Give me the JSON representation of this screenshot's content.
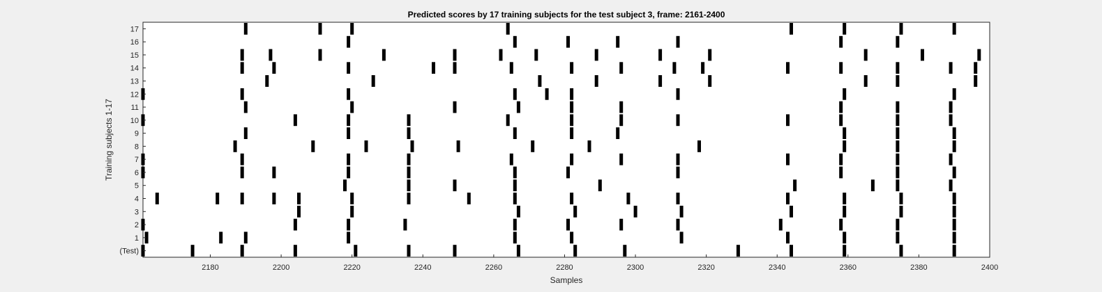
{
  "chart_data": {
    "type": "raster",
    "title": "Predicted scores by 17 training subjects for the test subject 3, frame: 2161-2400",
    "xlabel": "Samples",
    "ylabel": "Training subjects 1-17",
    "xlim": [
      2161,
      2400
    ],
    "xticks": [
      2180,
      2200,
      2220,
      2240,
      2260,
      2280,
      2300,
      2320,
      2340,
      2360,
      2380,
      2400
    ],
    "yticklabels": [
      "(Test)",
      "1",
      "2",
      "3",
      "4",
      "5",
      "6",
      "7",
      "8",
      "9",
      "10",
      "11",
      "12",
      "13",
      "14",
      "15",
      "16",
      "17"
    ],
    "grid": false,
    "bar_color": "#000000",
    "rows": [
      {
        "label": "(Test)",
        "events": [
          2161,
          2175,
          2189,
          2204,
          2221,
          2236,
          2249,
          2267,
          2283,
          2297,
          2329,
          2344,
          2359,
          2375,
          2390
        ]
      },
      {
        "label": "1",
        "events": [
          2162,
          2183,
          2190,
          2219,
          2266,
          2282,
          2313,
          2343,
          2359,
          2374,
          2390
        ]
      },
      {
        "label": "2",
        "events": [
          2161,
          2204,
          2219,
          2235,
          2266,
          2281,
          2296,
          2312,
          2341,
          2358,
          2374,
          2390
        ]
      },
      {
        "label": "3",
        "events": [
          2205,
          2220,
          2267,
          2283,
          2300,
          2313,
          2344,
          2359,
          2375,
          2390
        ]
      },
      {
        "label": "4",
        "events": [
          2165,
          2182,
          2189,
          2198,
          2205,
          2220,
          2236,
          2253,
          2266,
          2282,
          2298,
          2312,
          2343,
          2359,
          2375,
          2390
        ]
      },
      {
        "label": "5",
        "events": [
          2218,
          2236,
          2249,
          2266,
          2290,
          2345,
          2367,
          2374,
          2389
        ]
      },
      {
        "label": "6",
        "events": [
          2161,
          2189,
          2198,
          2219,
          2236,
          2266,
          2281,
          2312,
          2358,
          2374,
          2390
        ]
      },
      {
        "label": "7",
        "events": [
          2161,
          2189,
          2219,
          2236,
          2265,
          2282,
          2296,
          2312,
          2343,
          2358,
          2374,
          2389
        ]
      },
      {
        "label": "8",
        "events": [
          2187,
          2209,
          2224,
          2237,
          2250,
          2271,
          2287,
          2318,
          2359,
          2374,
          2390
        ]
      },
      {
        "label": "9",
        "events": [
          2190,
          2219,
          2236,
          2266,
          2282,
          2295,
          2359,
          2374,
          2390
        ]
      },
      {
        "label": "10",
        "events": [
          2161,
          2204,
          2219,
          2236,
          2264,
          2282,
          2296,
          2312,
          2343,
          2358,
          2374,
          2389
        ]
      },
      {
        "label": "11",
        "events": [
          2190,
          2220,
          2249,
          2267,
          2282,
          2296,
          2358,
          2374,
          2389
        ]
      },
      {
        "label": "12",
        "events": [
          2161,
          2189,
          2219,
          2266,
          2275,
          2282,
          2312,
          2359,
          2390
        ]
      },
      {
        "label": "13",
        "events": [
          2196,
          2226,
          2273,
          2289,
          2307,
          2321,
          2365,
          2374,
          2396
        ]
      },
      {
        "label": "14",
        "events": [
          2189,
          2198,
          2219,
          2243,
          2249,
          2265,
          2282,
          2296,
          2311,
          2319,
          2343,
          2358,
          2374,
          2389,
          2396
        ]
      },
      {
        "label": "15",
        "events": [
          2189,
          2197,
          2211,
          2229,
          2249,
          2262,
          2272,
          2289,
          2307,
          2321,
          2365,
          2381,
          2397
        ]
      },
      {
        "label": "16",
        "events": [
          2219,
          2266,
          2281,
          2295,
          2312,
          2358,
          2374
        ]
      },
      {
        "label": "17",
        "events": [
          2190,
          2211,
          2220,
          2264,
          2344,
          2359,
          2375,
          2390
        ]
      }
    ]
  }
}
